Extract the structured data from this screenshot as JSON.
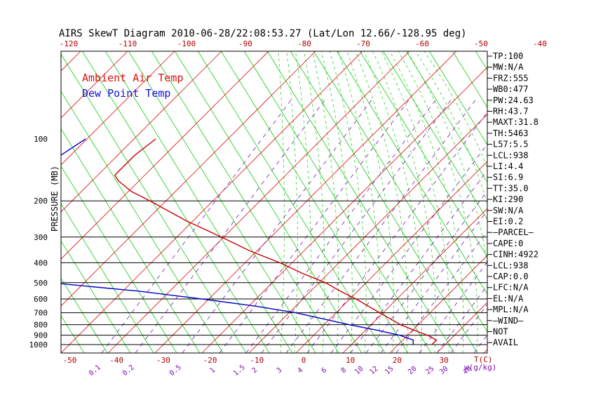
{
  "chart_data": {
    "type": "line",
    "title": "AIRS SkewT Diagram 2010-06-28/22:08:53.27 (Lat/Lon 12.66/-128.95 deg)",
    "ylabel": "PRESSURE (MB)",
    "xlabel": "T(C)",
    "mixing_label": "w(g/kg)",
    "pressure_ticks": [
      100,
      200,
      300,
      400,
      500,
      600,
      700,
      800,
      900,
      1000
    ],
    "pressure_lines": [
      200,
      300,
      400,
      500,
      600,
      700,
      800,
      900,
      1000
    ],
    "top_temp_ticks": [
      -120,
      -110,
      -100,
      -90,
      -80,
      -70,
      -60,
      -50,
      -40
    ],
    "bottom_temp_ticks": [
      -50,
      -40,
      -30,
      -20,
      -10,
      0,
      10,
      20,
      30
    ],
    "mixing_ratio_labels": [
      "0.1",
      "0.2",
      "0.5",
      "1",
      "1.5",
      "2",
      "3",
      "4",
      "6",
      "8",
      "10",
      "12",
      "15",
      "20",
      "25",
      "30",
      "40"
    ],
    "legend": [
      {
        "name": "Ambient Air Temp",
        "color": "#e01010"
      },
      {
        "name": "Dew Point Temp",
        "color": "#1010e0"
      }
    ],
    "colors": {
      "isotherm": "#e01010",
      "dry_adiabat": "#10cc10",
      "moist_adiabat": "#10cc10",
      "mixing_ratio": "#7a10b0",
      "temperature": "#cc0000",
      "dewpoint": "#0000cc",
      "axis_text": "#000000",
      "bottom_labels": "#b00000",
      "mixing_labels": "#7a10b0"
    },
    "series": [
      {
        "name": "Ambient Air Temp",
        "points": [
          {
            "p": 100,
            "t": -79
          },
          {
            "p": 120,
            "t": -80
          },
          {
            "p": 150,
            "t": -80
          },
          {
            "p": 160,
            "t": -78
          },
          {
            "p": 180,
            "t": -73
          },
          {
            "p": 200,
            "t": -67
          },
          {
            "p": 250,
            "t": -55
          },
          {
            "p": 300,
            "t": -44
          },
          {
            "p": 350,
            "t": -35
          },
          {
            "p": 400,
            "t": -26
          },
          {
            "p": 450,
            "t": -19
          },
          {
            "p": 500,
            "t": -12
          },
          {
            "p": 550,
            "t": -7
          },
          {
            "p": 600,
            "t": -2
          },
          {
            "p": 700,
            "t": 6
          },
          {
            "p": 800,
            "t": 13
          },
          {
            "p": 850,
            "t": 17
          },
          {
            "p": 900,
            "t": 21
          },
          {
            "p": 950,
            "t": 24
          },
          {
            "p": 1000,
            "t": 24
          }
        ]
      },
      {
        "name": "Dew Point Temp",
        "points": [
          {
            "p": 100,
            "t": -94
          },
          {
            "p": 150,
            "t": -98
          },
          {
            "p": 200,
            "t": -102
          },
          {
            "p": 250,
            "t": -102
          },
          {
            "p": 300,
            "t": -104
          },
          {
            "p": 350,
            "t": -106
          },
          {
            "p": 400,
            "t": -109
          },
          {
            "p": 450,
            "t": -90
          },
          {
            "p": 500,
            "t": -71
          },
          {
            "p": 550,
            "t": -50
          },
          {
            "p": 600,
            "t": -35
          },
          {
            "p": 650,
            "t": -22
          },
          {
            "p": 700,
            "t": -12
          },
          {
            "p": 800,
            "t": 2
          },
          {
            "p": 850,
            "t": 9
          },
          {
            "p": 900,
            "t": 15
          },
          {
            "p": 950,
            "t": 19
          },
          {
            "p": 1000,
            "t": 20
          }
        ]
      }
    ]
  },
  "indices": [
    "TP:100",
    "MW:N/A",
    "FRZ:555",
    "WB0:477",
    "PW:24.63",
    "RH:43.7",
    "MAXT:31.8",
    "TH:5463",
    "L57:5.5",
    "LCL:938",
    "LI:4.4",
    "SI:6.9",
    "TT:35.0",
    "KI:290",
    "SW:N/A",
    "EI:0.2",
    "—PARCEL—",
    "CAPE:0",
    "CINH:4922",
    "LCL:938",
    "CAP:0.0",
    "LFC:N/A",
    "EL:N/A",
    "MPL:N/A",
    "—WIND—",
    "NOT",
    "AVAIL"
  ]
}
